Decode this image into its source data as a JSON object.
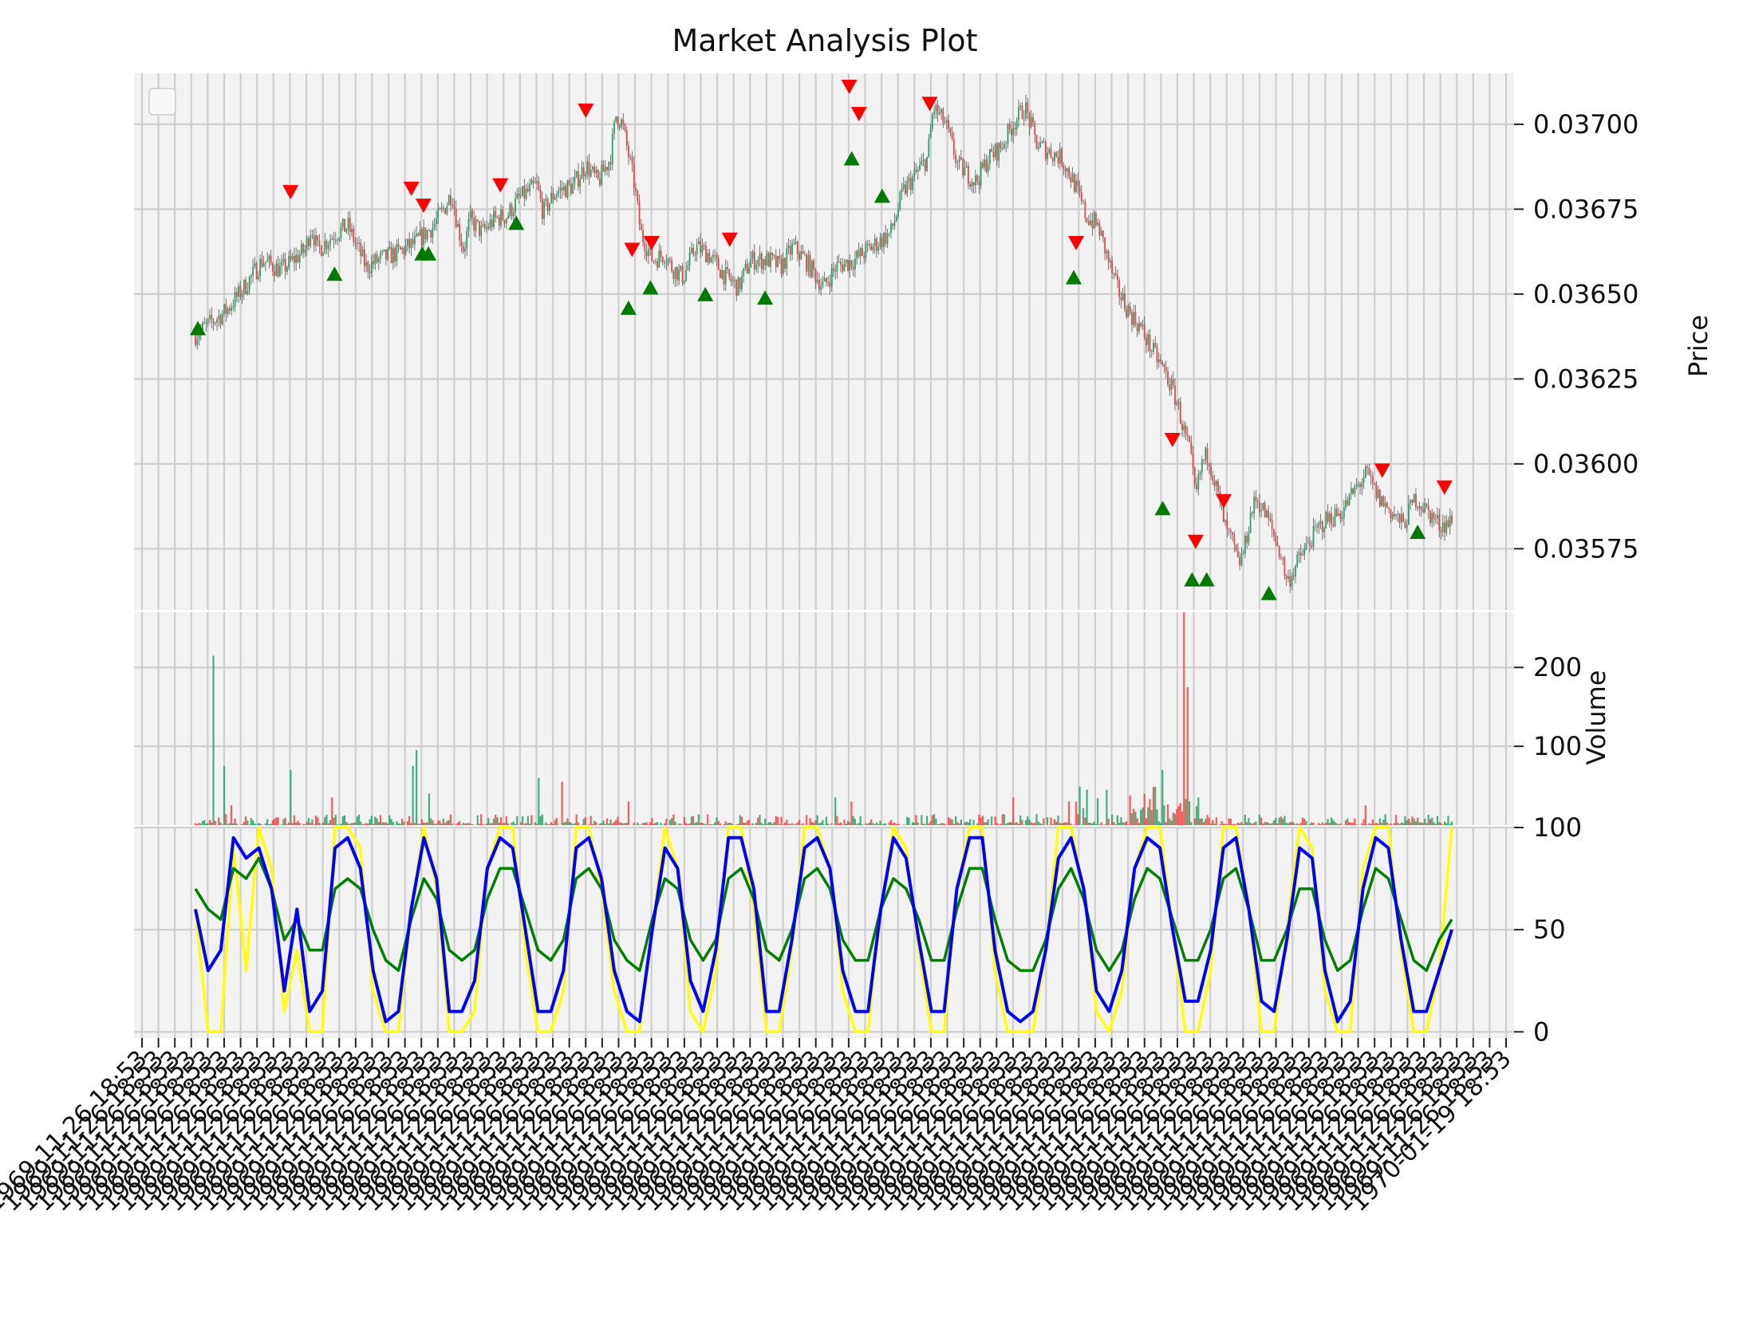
{
  "chart_data": [
    {
      "panel": "price",
      "type": "candlestick",
      "title": "Market Analysis Plot",
      "ylabel": "Price",
      "yticks": [
        "0.03575",
        "0.03600",
        "0.03625",
        "0.03650",
        "0.03675",
        "0.03700"
      ],
      "ylim": [
        0.03557,
        0.03715
      ],
      "legend": "top-left (empty)",
      "grid": true,
      "n_points": 700,
      "close_path": [
        [
          0,
          0.03638
        ],
        [
          25,
          0.03645
        ],
        [
          40,
          0.03652
        ],
        [
          55,
          0.0366
        ],
        [
          70,
          0.03657
        ],
        [
          90,
          0.03663
        ],
        [
          95,
          0.0367
        ],
        [
          100,
          0.03663
        ],
        [
          115,
          0.03668
        ],
        [
          125,
          0.0367
        ],
        [
          140,
          0.03658
        ],
        [
          150,
          0.0366
        ],
        [
          165,
          0.03662
        ],
        [
          180,
          0.03665
        ],
        [
          195,
          0.0367
        ],
        [
          205,
          0.03676
        ],
        [
          210,
          0.0368
        ],
        [
          215,
          0.0367
        ],
        [
          220,
          0.03663
        ],
        [
          225,
          0.03672
        ],
        [
          235,
          0.03668
        ],
        [
          245,
          0.03672
        ],
        [
          255,
          0.03673
        ],
        [
          265,
          0.03678
        ],
        [
          280,
          0.03682
        ],
        [
          285,
          0.03674
        ],
        [
          295,
          0.0368
        ],
        [
          310,
          0.03682
        ],
        [
          320,
          0.03688
        ],
        [
          330,
          0.03683
        ],
        [
          340,
          0.0369
        ],
        [
          345,
          0.03703
        ],
        [
          350,
          0.037
        ],
        [
          360,
          0.03682
        ],
        [
          365,
          0.03668
        ],
        [
          375,
          0.0366
        ],
        [
          385,
          0.03662
        ],
        [
          390,
          0.03658
        ],
        [
          400,
          0.03655
        ],
        [
          410,
          0.03664
        ],
        [
          420,
          0.03662
        ],
        [
          435,
          0.03655
        ],
        [
          445,
          0.03652
        ],
        [
          455,
          0.0366
        ],
        [
          470,
          0.0366
        ],
        [
          480,
          0.03658
        ],
        [
          490,
          0.03664
        ],
        [
          500,
          0.0366
        ],
        [
          515,
          0.03652
        ],
        [
          525,
          0.03658
        ],
        [
          540,
          0.0366
        ],
        [
          555,
          0.03664
        ],
        [
          570,
          0.03668
        ],
        [
          580,
          0.0368
        ],
        [
          590,
          0.03685
        ],
        [
          600,
          0.0369
        ],
        [
          605,
          0.03705
        ],
        [
          615,
          0.037
        ],
        [
          625,
          0.03688
        ],
        [
          640,
          0.03683
        ],
        [
          650,
          0.0369
        ],
        [
          660,
          0.03693
        ],
        [
          670,
          0.037
        ],
        [
          680,
          0.03705
        ],
        [
          690,
          0.03694
        ],
        [
          700,
          0.03692
        ],
        [
          710,
          0.0369
        ],
        [
          720,
          0.03683
        ],
        [
          730,
          0.03673
        ],
        [
          740,
          0.0367
        ],
        [
          745,
          0.03664
        ],
        [
          755,
          0.03652
        ],
        [
          765,
          0.03645
        ],
        [
          775,
          0.0364
        ],
        [
          785,
          0.03633
        ],
        [
          795,
          0.03627
        ],
        [
          805,
          0.03618
        ],
        [
          810,
          0.0361
        ],
        [
          815,
          0.03604
        ],
        [
          820,
          0.0359
        ],
        [
          825,
          0.036
        ],
        [
          830,
          0.03603
        ],
        [
          835,
          0.03596
        ],
        [
          845,
          0.0358
        ],
        [
          850,
          0.03577
        ],
        [
          855,
          0.0357
        ],
        [
          860,
          0.03575
        ],
        [
          865,
          0.03585
        ],
        [
          870,
          0.0359
        ],
        [
          880,
          0.03583
        ],
        [
          890,
          0.03573
        ],
        [
          895,
          0.03565
        ],
        [
          905,
          0.03572
        ],
        [
          915,
          0.03578
        ],
        [
          925,
          0.03583
        ],
        [
          940,
          0.03586
        ],
        [
          950,
          0.03592
        ],
        [
          960,
          0.03597
        ],
        [
          970,
          0.0359
        ],
        [
          980,
          0.03586
        ],
        [
          990,
          0.03582
        ],
        [
          1000,
          0.0359
        ],
        [
          1010,
          0.03586
        ],
        [
          1020,
          0.03582
        ],
        [
          1030,
          0.03583
        ]
      ],
      "sell_markers": [
        [
          78,
          0.0368
        ],
        [
          177,
          0.03681
        ],
        [
          187,
          0.03676
        ],
        [
          250,
          0.03682
        ],
        [
          320,
          0.03704
        ],
        [
          358,
          0.03663
        ],
        [
          374,
          0.03665
        ],
        [
          438,
          0.03666
        ],
        [
          536,
          0.03711
        ],
        [
          544,
          0.03703
        ],
        [
          602,
          0.03706
        ],
        [
          722,
          0.03665
        ],
        [
          801,
          0.03607
        ],
        [
          820,
          0.03577
        ],
        [
          843,
          0.03589
        ],
        [
          973,
          0.03598
        ],
        [
          1024,
          0.03593
        ]
      ],
      "buy_markers": [
        [
          2,
          0.0364
        ],
        [
          114,
          0.03656
        ],
        [
          186,
          0.03662
        ],
        [
          191,
          0.03662
        ],
        [
          263,
          0.03671
        ],
        [
          355,
          0.03646
        ],
        [
          373,
          0.03652
        ],
        [
          418,
          0.0365
        ],
        [
          467,
          0.03649
        ],
        [
          538,
          0.0369
        ],
        [
          563,
          0.03679
        ],
        [
          720,
          0.03655
        ],
        [
          793,
          0.03587
        ],
        [
          817,
          0.03566
        ],
        [
          829,
          0.03566
        ],
        [
          880,
          0.03562
        ],
        [
          1002,
          0.0358
        ]
      ]
    },
    {
      "panel": "volume",
      "type": "bar",
      "ylabel": "Volume",
      "yticks": [
        "100",
        "200"
      ],
      "ylim": [
        0,
        270
      ],
      "spikes": [
        [
          15,
          215,
          "up"
        ],
        [
          24,
          75,
          "up"
        ],
        [
          30,
          25,
          "down"
        ],
        [
          78,
          70,
          "up"
        ],
        [
          112,
          35,
          "down"
        ],
        [
          178,
          75,
          "up"
        ],
        [
          181,
          95,
          "up"
        ],
        [
          192,
          40,
          "up"
        ],
        [
          281,
          60,
          "up"
        ],
        [
          300,
          55,
          "down"
        ],
        [
          355,
          30,
          "down"
        ],
        [
          524,
          35,
          "up"
        ],
        [
          538,
          30,
          "down"
        ],
        [
          670,
          35,
          "down"
        ],
        [
          722,
          30,
          "down"
        ],
        [
          778,
          40,
          "down"
        ],
        [
          793,
          70,
          "up"
        ],
        [
          810,
          270,
          "down"
        ],
        [
          814,
          175,
          "down"
        ],
        [
          822,
          35,
          "up"
        ],
        [
          960,
          25,
          "down"
        ]
      ]
    },
    {
      "panel": "oscillator",
      "type": "line",
      "yticks": [
        "0",
        "50",
        "100"
      ],
      "ylim": [
        -3,
        100
      ],
      "series": [
        {
          "color": "#ffff00",
          "values": [
            60,
            0,
            0,
            90,
            30,
            100,
            80,
            10,
            40,
            0,
            0,
            100,
            100,
            90,
            20,
            0,
            0,
            60,
            100,
            70,
            0,
            0,
            10,
            80,
            100,
            100,
            40,
            0,
            0,
            20,
            100,
            100,
            70,
            20,
            0,
            0,
            50,
            100,
            80,
            10,
            0,
            30,
            100,
            100,
            60,
            0,
            0,
            40,
            100,
            100,
            80,
            20,
            0,
            0,
            60,
            100,
            90,
            40,
            0,
            0,
            70,
            100,
            100,
            30,
            0,
            0,
            0,
            40,
            100,
            100,
            70,
            10,
            0,
            20,
            80,
            100,
            100,
            50,
            0,
            0,
            30,
            100,
            100,
            60,
            0,
            0,
            50,
            100,
            90,
            20,
            0,
            0,
            80,
            100,
            100,
            40,
            0,
            0,
            30,
            100
          ]
        },
        {
          "color": "#008000",
          "values": [
            70,
            60,
            55,
            80,
            75,
            85,
            70,
            45,
            55,
            40,
            40,
            70,
            75,
            70,
            50,
            35,
            30,
            55,
            75,
            65,
            40,
            35,
            40,
            65,
            80,
            80,
            60,
            40,
            35,
            45,
            75,
            80,
            70,
            45,
            35,
            30,
            55,
            75,
            70,
            45,
            35,
            45,
            75,
            80,
            65,
            40,
            35,
            50,
            75,
            80,
            70,
            45,
            35,
            35,
            60,
            75,
            70,
            55,
            35,
            35,
            60,
            80,
            80,
            55,
            35,
            30,
            30,
            45,
            70,
            80,
            65,
            40,
            30,
            40,
            65,
            80,
            75,
            55,
            35,
            35,
            50,
            75,
            80,
            60,
            35,
            35,
            50,
            70,
            70,
            45,
            30,
            35,
            60,
            80,
            75,
            55,
            35,
            30,
            45,
            55
          ]
        },
        {
          "color": "#0000ff",
          "values": [
            60,
            30,
            40,
            95,
            85,
            90,
            70,
            20,
            60,
            10,
            20,
            90,
            95,
            80,
            30,
            5,
            10,
            60,
            95,
            75,
            10,
            10,
            25,
            80,
            95,
            90,
            50,
            10,
            10,
            30,
            90,
            95,
            75,
            30,
            10,
            5,
            50,
            90,
            80,
            25,
            10,
            40,
            95,
            95,
            70,
            10,
            10,
            45,
            90,
            95,
            80,
            30,
            10,
            10,
            60,
            95,
            85,
            45,
            10,
            10,
            70,
            95,
            95,
            40,
            10,
            5,
            10,
            40,
            85,
            95,
            70,
            20,
            10,
            30,
            80,
            95,
            90,
            50,
            15,
            15,
            40,
            90,
            95,
            60,
            15,
            10,
            45,
            90,
            85,
            30,
            5,
            15,
            70,
            95,
            90,
            45,
            10,
            10,
            30,
            50
          ]
        }
      ]
    }
  ],
  "x_axis": {
    "first_label": "1969-11-26 18:53",
    "last_label": "1970-01-19 18:53",
    "n_ticks": 84,
    "rotation_deg": 45
  }
}
